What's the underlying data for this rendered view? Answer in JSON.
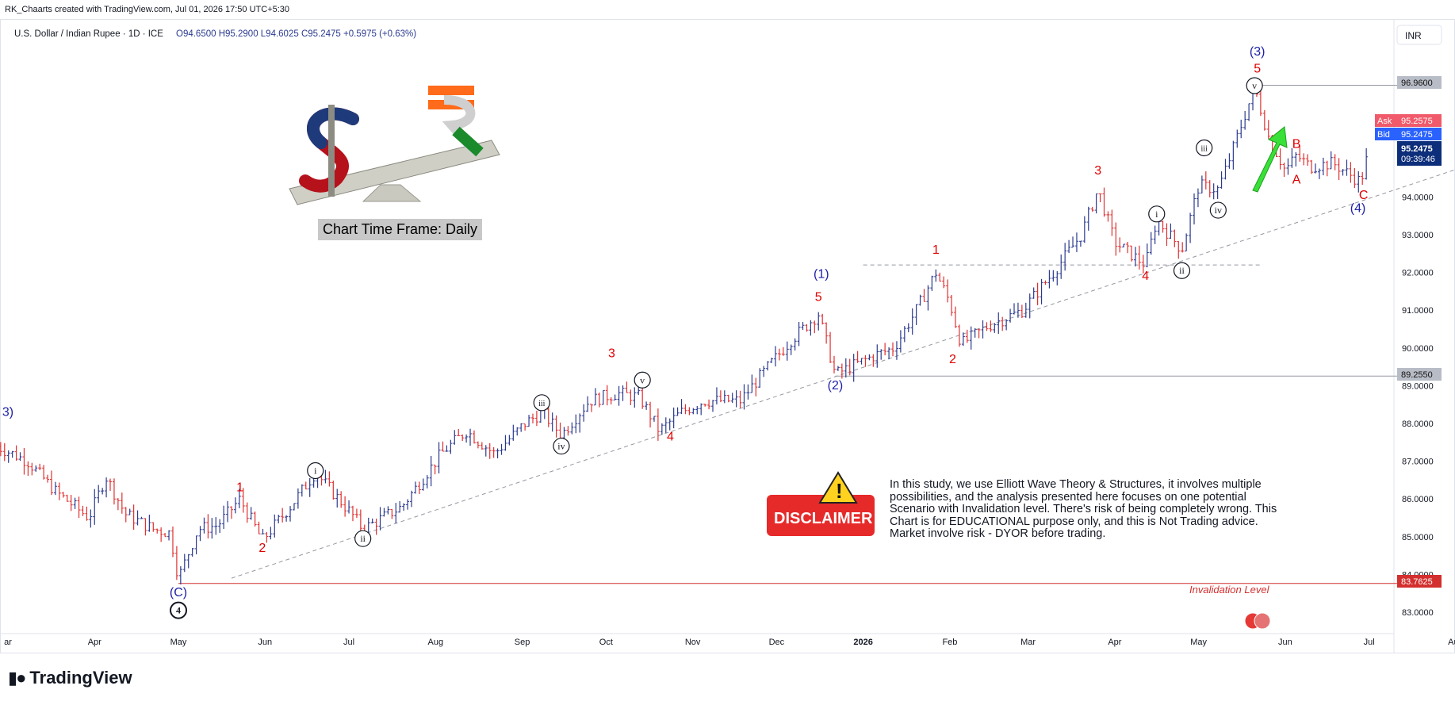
{
  "header": {
    "created_line": "RK_Chaarts created with TradingView.com, Jul 01, 2026 17:50 UTC+5:30",
    "symbol": "U.S. Dollar / Indian Rupee · 1D · ICE",
    "ohlc": "O94.6500  H95.2900  L94.6025  C95.2475  +0.5975 (+0.63%)",
    "currency_button": "INR"
  },
  "price_tags": {
    "ask_label": "Ask",
    "ask_value": "95.2575",
    "bid_label": "Bid",
    "bid_value": "95.2475",
    "last_value": "95.2475",
    "countdown": "09:39:46",
    "level_high": "96.9600",
    "level_mid": "89.2550",
    "level_invalid": "83.7625"
  },
  "annotations": {
    "timeframe_label": "Chart Time Frame: Daily",
    "disclaimer_badge": "DISCLAIMER",
    "disclaimer_text": "In this study, we use Elliott Wave Theory & Structures, it involves multiple possibilities, and the analysis presented here focuses on one potential Scenario with Invalidation level. There's risk of being completely wrong. This Chart is for EDUCATIONAL purpose only, and this is Not Trading advice. Market involve risk - DYOR before trading.",
    "invalidation_label": "Invalidation Level"
  },
  "wave_labels": [
    {
      "text": "3)",
      "date": "2025-03-01",
      "price": 88.2,
      "color": "#1e22aa"
    },
    {
      "text": "(C)",
      "date": "2025-05-01",
      "price": 83.42,
      "color": "#1e22aa"
    },
    {
      "text": "1",
      "date": "2025-05-23",
      "price": 86.2,
      "color": "#e00000"
    },
    {
      "text": "2",
      "date": "2025-05-31",
      "price": 84.6,
      "color": "#e00000"
    },
    {
      "text": "3",
      "date": "2025-10-03",
      "price": 89.75,
      "color": "#e00000"
    },
    {
      "text": "4",
      "date": "2025-10-24",
      "price": 87.55,
      "color": "#e00000"
    },
    {
      "text": "5",
      "date": "2025-12-16",
      "price": 91.25,
      "color": "#e00000"
    },
    {
      "text": "(1)",
      "date": "2025-12-17",
      "price": 91.85,
      "color": "#1e22aa"
    },
    {
      "text": "(2)",
      "date": "2025-12-22",
      "price": 88.9,
      "color": "#1e22aa"
    },
    {
      "text": "1",
      "date": "2026-01-27",
      "price": 92.5,
      "color": "#e00000"
    },
    {
      "text": "2",
      "date": "2026-02-02",
      "price": 89.6,
      "color": "#e00000"
    },
    {
      "text": "3",
      "date": "2026-03-26",
      "price": 94.6,
      "color": "#e00000"
    },
    {
      "text": "4",
      "date": "2026-04-12",
      "price": 91.8,
      "color": "#e00000"
    },
    {
      "text": "(3)",
      "date": "2026-05-22",
      "price": 97.75,
      "color": "#1e22aa"
    },
    {
      "text": "5",
      "date": "2026-05-22",
      "price": 97.3,
      "color": "#e00000"
    },
    {
      "text": "B",
      "date": "2026-06-05",
      "price": 95.3,
      "color": "#e00000"
    },
    {
      "text": "A",
      "date": "2026-06-05",
      "price": 94.35,
      "color": "#e00000"
    },
    {
      "text": "C",
      "date": "2026-06-29",
      "price": 93.95,
      "color": "#e00000"
    },
    {
      "text": "(4)",
      "date": "2026-06-27",
      "price": 93.6,
      "color": "#1e22aa"
    }
  ],
  "circle_labels": [
    {
      "text": "4",
      "date": "2025-05-01",
      "price": 83.05,
      "filled": true
    },
    {
      "text": "i",
      "date": "2025-06-19",
      "price": 86.75
    },
    {
      "text": "ii",
      "date": "2025-07-06",
      "price": 84.95
    },
    {
      "text": "iii",
      "date": "2025-09-08",
      "price": 88.55
    },
    {
      "text": "iv",
      "date": "2025-09-15",
      "price": 87.4
    },
    {
      "text": "v",
      "date": "2025-10-14",
      "price": 89.15
    },
    {
      "text": "i",
      "date": "2026-04-16",
      "price": 93.55
    },
    {
      "text": "ii",
      "date": "2026-04-25",
      "price": 92.05
    },
    {
      "text": "iii",
      "date": "2026-05-03",
      "price": 95.3
    },
    {
      "text": "iv",
      "date": "2026-05-08",
      "price": 93.65
    },
    {
      "text": "v",
      "date": "2026-05-21",
      "price": 96.95
    }
  ],
  "chart_data": {
    "type": "ohlc-bar",
    "title": "U.S. Dollar / Indian Rupee · 1D · ICE",
    "ylim": [
      82.6,
      98.0
    ],
    "y_ticks": [
      "83.0000",
      "84.0000",
      "85.0000",
      "86.0000",
      "87.0000",
      "88.0000",
      "89.0000",
      "90.0000",
      "91.0000",
      "92.0000",
      "93.0000",
      "94.0000"
    ],
    "x_ticks": [
      {
        "label": "ar",
        "date": "2025-03-01"
      },
      {
        "label": "Apr",
        "date": "2025-04-01"
      },
      {
        "label": "May",
        "date": "2025-05-01"
      },
      {
        "label": "Jun",
        "date": "2025-06-01"
      },
      {
        "label": "Jul",
        "date": "2025-07-01"
      },
      {
        "label": "Aug",
        "date": "2025-08-01"
      },
      {
        "label": "Sep",
        "date": "2025-09-01"
      },
      {
        "label": "Oct",
        "date": "2025-10-01"
      },
      {
        "label": "Nov",
        "date": "2025-11-01"
      },
      {
        "label": "Dec",
        "date": "2025-12-01"
      },
      {
        "label": "2026",
        "date": "2026-01-01",
        "bold": true
      },
      {
        "label": "Feb",
        "date": "2026-02-01"
      },
      {
        "label": "Mar",
        "date": "2026-03-01"
      },
      {
        "label": "Apr",
        "date": "2026-04-01"
      },
      {
        "label": "May",
        "date": "2026-05-01"
      },
      {
        "label": "Jun",
        "date": "2026-06-01"
      },
      {
        "label": "Jul",
        "date": "2026-07-01"
      },
      {
        "label": "Aug",
        "date": "2026-08-01"
      }
    ],
    "close_path": [
      [
        "2025-02-25",
        87.4
      ],
      [
        "2025-03-08",
        87.0
      ],
      [
        "2025-03-18",
        86.2
      ],
      [
        "2025-03-30",
        85.5
      ],
      [
        "2025-04-05",
        86.6
      ],
      [
        "2025-04-12",
        85.6
      ],
      [
        "2025-04-22",
        85.2
      ],
      [
        "2025-04-28",
        85.1
      ],
      [
        "2025-05-01",
        83.9
      ],
      [
        "2025-05-08",
        85.2
      ],
      [
        "2025-05-15",
        85.3
      ],
      [
        "2025-05-23",
        86.0
      ],
      [
        "2025-05-31",
        84.9
      ],
      [
        "2025-06-10",
        85.8
      ],
      [
        "2025-06-19",
        86.7
      ],
      [
        "2025-07-02",
        85.6
      ],
      [
        "2025-07-06",
        85.2
      ],
      [
        "2025-07-20",
        85.8
      ],
      [
        "2025-08-03",
        87.2
      ],
      [
        "2025-08-12",
        87.8
      ],
      [
        "2025-08-22",
        87.2
      ],
      [
        "2025-09-02",
        88.0
      ],
      [
        "2025-09-08",
        88.3
      ],
      [
        "2025-09-15",
        87.7
      ],
      [
        "2025-09-25",
        88.6
      ],
      [
        "2025-10-05",
        88.8
      ],
      [
        "2025-10-13",
        88.7
      ],
      [
        "2025-10-20",
        87.8
      ],
      [
        "2025-10-28",
        88.3
      ],
      [
        "2025-11-05",
        88.6
      ],
      [
        "2025-11-18",
        88.6
      ],
      [
        "2025-11-28",
        89.5
      ],
      [
        "2025-12-06",
        90.2
      ],
      [
        "2025-12-16",
        90.9
      ],
      [
        "2025-12-22",
        89.3
      ],
      [
        "2026-01-05",
        89.8
      ],
      [
        "2026-01-12",
        90.0
      ],
      [
        "2026-01-20",
        91.0
      ],
      [
        "2026-01-27",
        92.0
      ],
      [
        "2026-02-01",
        91.2
      ],
      [
        "2026-02-05",
        90.1
      ],
      [
        "2026-02-15",
        90.6
      ],
      [
        "2026-02-27",
        91.0
      ],
      [
        "2026-03-10",
        92.0
      ],
      [
        "2026-03-20",
        93.0
      ],
      [
        "2026-03-26",
        94.2
      ],
      [
        "2026-04-01",
        92.8
      ],
      [
        "2026-04-12",
        92.2
      ],
      [
        "2026-04-16",
        93.4
      ],
      [
        "2026-04-25",
        92.6
      ],
      [
        "2026-05-01",
        94.3
      ],
      [
        "2026-05-08",
        94.2
      ],
      [
        "2026-05-12",
        95.0
      ],
      [
        "2026-05-21",
        96.9
      ],
      [
        "2026-05-26",
        95.6
      ],
      [
        "2026-06-01",
        94.7
      ],
      [
        "2026-06-05",
        95.1
      ],
      [
        "2026-06-10",
        94.8
      ],
      [
        "2026-06-18",
        94.9
      ],
      [
        "2026-06-28",
        94.4
      ],
      [
        "2026-07-01",
        95.25
      ]
    ],
    "series": [
      {
        "name": "USD/INR daily bars"
      }
    ]
  },
  "colors": {
    "up_bar": "#2b3a8f",
    "down_bar": "#e03030",
    "wave_red": "#e00000",
    "wave_blue": "#1e22aa",
    "invalid_line": "#d32f2f",
    "ask_tag": "#f05a6a",
    "bid_tag": "#2962ff",
    "last_tag": "#0d2e7a"
  }
}
